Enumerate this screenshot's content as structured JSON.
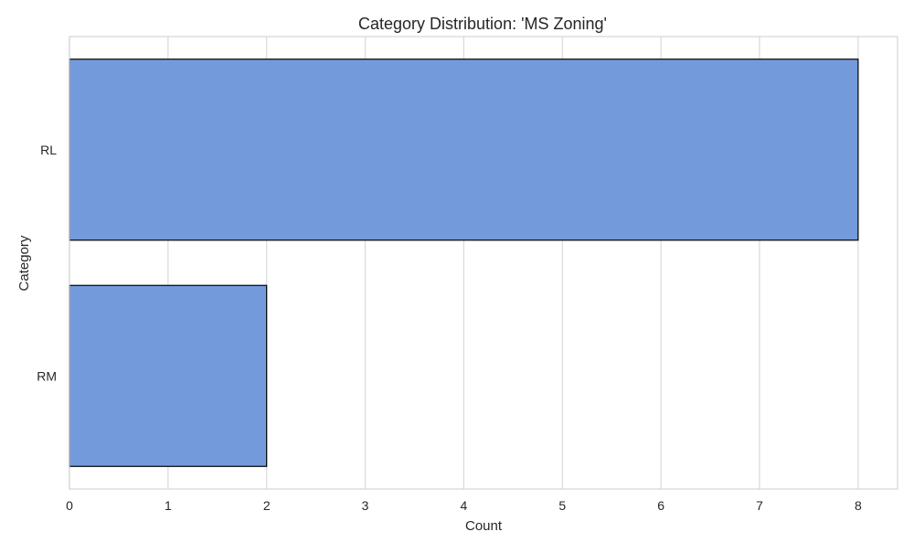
{
  "chart_data": {
    "type": "bar",
    "orientation": "horizontal",
    "title": "Category Distribution: 'MS Zoning'",
    "xlabel": "Count",
    "ylabel": "Category",
    "categories": [
      "RL",
      "RM"
    ],
    "values": [
      8,
      2
    ],
    "xlim": [
      0,
      8.4
    ],
    "xticks": [
      0,
      1,
      2,
      3,
      4,
      5,
      6,
      7,
      8
    ],
    "grid": true,
    "legend": "none",
    "colors": {
      "bar_fill": "#739bdc",
      "bar_edge": "#000000",
      "grid": "#d9d9d9",
      "spine": "#cccccc",
      "text": "#262626"
    }
  }
}
